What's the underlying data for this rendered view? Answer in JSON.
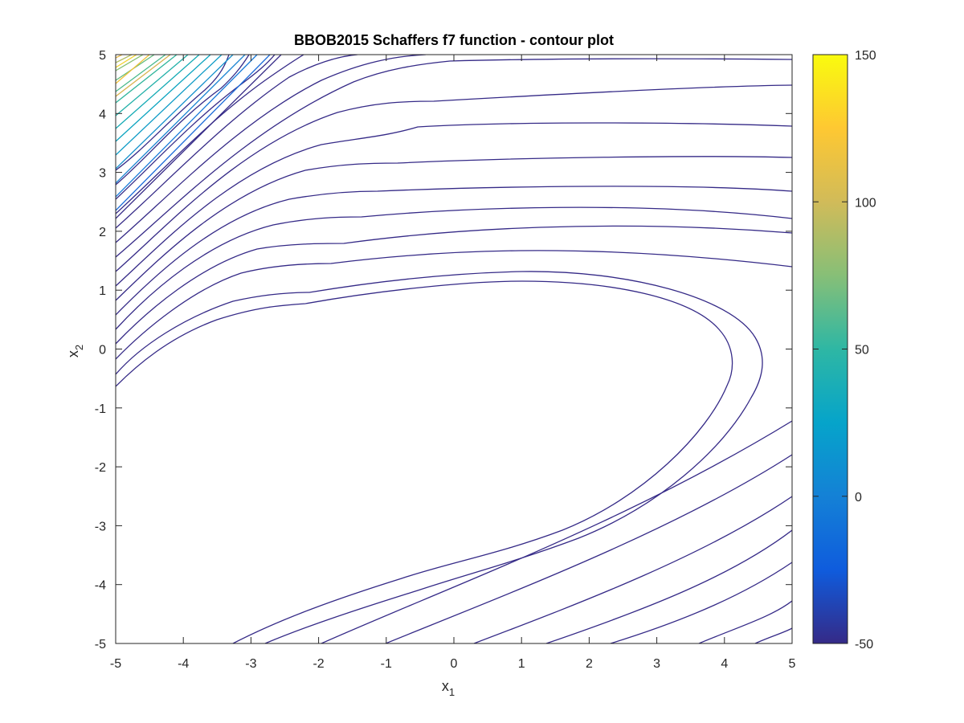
{
  "chart_data": {
    "type": "contour",
    "title": "BBOB2015 Schaffers f7 function - contour plot",
    "xlabel": {
      "base": "x",
      "sub": "1"
    },
    "ylabel": {
      "base": "x",
      "sub": "2"
    },
    "xlim": [
      -5,
      5
    ],
    "ylim": [
      -5,
      5
    ],
    "xticks": [
      "-5",
      "-4",
      "-3",
      "-2",
      "-1",
      "0",
      "1",
      "2",
      "3",
      "4",
      "5"
    ],
    "yticks": [
      "-5",
      "-4",
      "-3",
      "-2",
      "-1",
      "0",
      "1",
      "2",
      "3",
      "4",
      "5"
    ],
    "grid": false,
    "colorbar": {
      "min": -50,
      "max": 150,
      "ticks": [
        "-50",
        "0",
        "50",
        "100",
        "150"
      ],
      "colormap": "parula",
      "colors": [
        "#352a87",
        "#0363e1",
        "#1485d4",
        "#06a7c6",
        "#38b99e",
        "#92bf73",
        "#d9ba56",
        "#fcce2e",
        "#f9fb0e"
      ]
    },
    "line_color_low": "#352a87"
  }
}
